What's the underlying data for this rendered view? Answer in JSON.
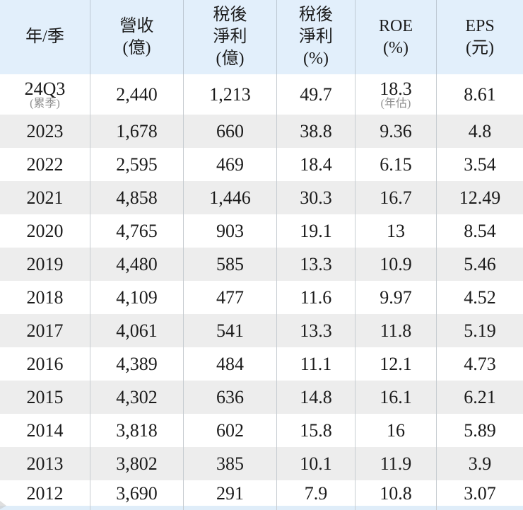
{
  "table": {
    "title": "financial-history-table",
    "columns": [
      {
        "key": "period",
        "label": "年/季"
      },
      {
        "key": "revenue",
        "label": "營收\n(億)"
      },
      {
        "key": "net_income",
        "label": "稅後\n淨利\n(億)"
      },
      {
        "key": "net_margin",
        "label": "稅後\n淨利\n(%)"
      },
      {
        "key": "roe",
        "label": "ROE\n(%)"
      },
      {
        "key": "eps",
        "label": "EPS\n(元)"
      }
    ],
    "rows": [
      {
        "period": "24Q3",
        "period_note": "(累季)",
        "revenue": "2,440",
        "net_income": "1,213",
        "net_margin": "49.7",
        "roe": "18.3",
        "roe_note": "(年估)",
        "eps": "8.61"
      },
      {
        "period": "2023",
        "revenue": "1,678",
        "net_income": "660",
        "net_margin": "38.8",
        "roe": "9.36",
        "eps": "4.8"
      },
      {
        "period": "2022",
        "revenue": "2,595",
        "net_income": "469",
        "net_margin": "18.4",
        "roe": "6.15",
        "eps": "3.54"
      },
      {
        "period": "2021",
        "revenue": "4,858",
        "net_income": "1,446",
        "net_margin": "30.3",
        "roe": "16.7",
        "eps": "12.49"
      },
      {
        "period": "2020",
        "revenue": "4,765",
        "net_income": "903",
        "net_margin": "19.1",
        "roe": "13",
        "eps": "8.54"
      },
      {
        "period": "2019",
        "revenue": "4,480",
        "net_income": "585",
        "net_margin": "13.3",
        "roe": "10.9",
        "eps": "5.46"
      },
      {
        "period": "2018",
        "revenue": "4,109",
        "net_income": "477",
        "net_margin": "11.6",
        "roe": "9.97",
        "eps": "4.52"
      },
      {
        "period": "2017",
        "revenue": "4,061",
        "net_income": "541",
        "net_margin": "13.3",
        "roe": "11.8",
        "eps": "5.19"
      },
      {
        "period": "2016",
        "revenue": "4,389",
        "net_income": "484",
        "net_margin": "11.1",
        "roe": "12.1",
        "eps": "4.73"
      },
      {
        "period": "2015",
        "revenue": "4,302",
        "net_income": "636",
        "net_margin": "14.8",
        "roe": "16.1",
        "eps": "6.21"
      },
      {
        "period": "2014",
        "revenue": "3,818",
        "net_income": "602",
        "net_margin": "15.8",
        "roe": "16",
        "eps": "5.89"
      },
      {
        "period": "2013",
        "revenue": "3,802",
        "net_income": "385",
        "net_margin": "10.1",
        "roe": "11.9",
        "eps": "3.9"
      },
      {
        "period": "2012",
        "revenue": "3,690",
        "net_income": "291",
        "net_margin": "7.9",
        "roe": "10.8",
        "eps": "3.07"
      }
    ]
  },
  "colors": {
    "header_bg": "#e2effb",
    "stripe_bg": "#ededed",
    "row_bg": "#ffffff",
    "column_border": "#c7ccd1",
    "text": "#1b1b1b",
    "note_text": "#8f8f8f",
    "bottom_strip_bg": "#dfedf9"
  }
}
